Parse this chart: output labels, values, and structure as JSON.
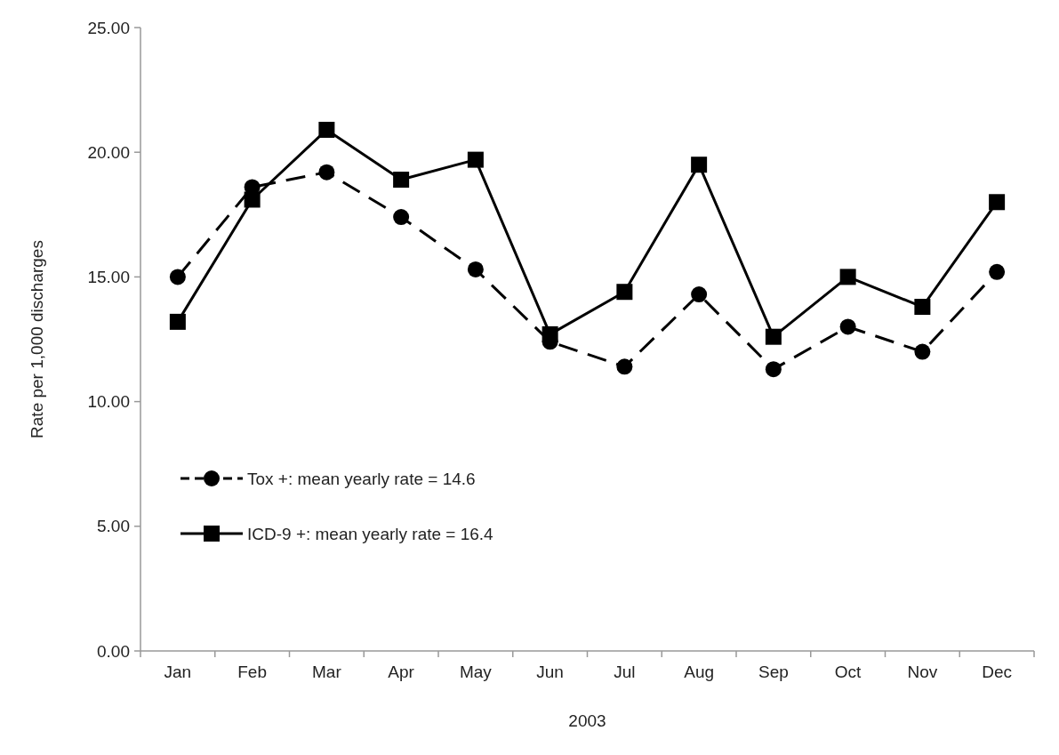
{
  "chart_data": {
    "type": "line",
    "xlabel": "2003",
    "ylabel": "Rate per 1,000 discharges",
    "categories": [
      "Jan",
      "Feb",
      "Mar",
      "Apr",
      "May",
      "Jun",
      "Jul",
      "Aug",
      "Sep",
      "Oct",
      "Nov",
      "Dec"
    ],
    "series": [
      {
        "name": "Tox +: mean yearly rate = 14.6",
        "color": "#000000",
        "marker": "circle",
        "line_style": "dashed",
        "values": [
          15.0,
          18.6,
          19.2,
          17.4,
          15.3,
          12.4,
          11.4,
          14.3,
          11.3,
          13.0,
          12.0,
          15.2
        ]
      },
      {
        "name": "ICD-9 +: mean yearly rate = 16.4",
        "color": "#000000",
        "marker": "square",
        "line_style": "solid",
        "values": [
          13.2,
          18.1,
          20.9,
          18.9,
          19.7,
          12.7,
          14.4,
          19.5,
          12.6,
          15.0,
          13.8,
          18.0
        ]
      }
    ],
    "ylim": [
      0,
      25
    ],
    "yticks": [
      {
        "value": 0,
        "label": "0.00"
      },
      {
        "value": 5,
        "label": "5.00"
      },
      {
        "value": 10,
        "label": "10.00"
      },
      {
        "value": 15,
        "label": "15.00"
      },
      {
        "value": 20,
        "label": "20.00"
      },
      {
        "value": 25,
        "label": "25.00"
      }
    ],
    "grid": false,
    "legend": "left"
  }
}
